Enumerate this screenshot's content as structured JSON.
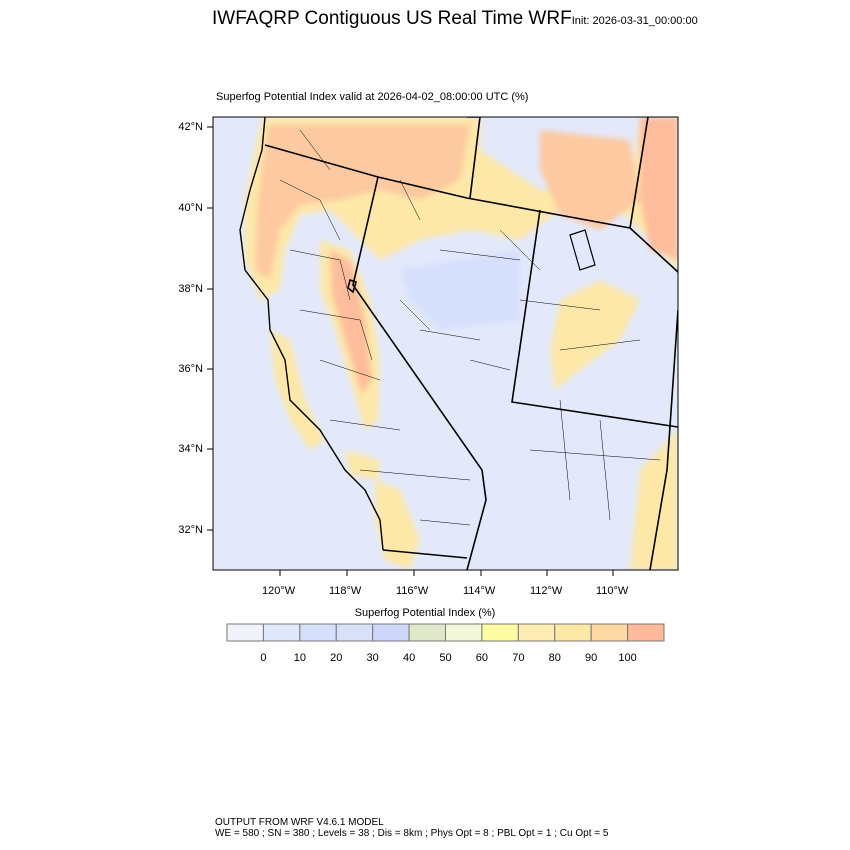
{
  "header": {
    "title": "IWFAQRP Contiguous US Real Time WRF",
    "init": "Init: 2026-03-31_00:00:00"
  },
  "plot": {
    "subtitle": "Superfog Potential Index valid at 2026-04-02_08:00:00 UTC   (%)",
    "lat_ticks": [
      "42°N",
      "40°N",
      "38°N",
      "36°N",
      "34°N",
      "32°N"
    ],
    "lon_ticks": [
      "120°W",
      "118°W",
      "116°W",
      "114°W",
      "112°W",
      "110°W"
    ]
  },
  "colorbar": {
    "title": "Superfog Potential Index  (%)",
    "labels": [
      "0",
      "10",
      "20",
      "30",
      "40",
      "50",
      "60",
      "70",
      "80",
      "90",
      "100"
    ],
    "colors": [
      "#f0f3f9",
      "#e2e8fb",
      "#d6dffb",
      "#d9e1f8",
      "#cdd6fb",
      "#dfe9c9",
      "#f3f8da",
      "#fdfca2",
      "#fdedb2",
      "#fde8a8",
      "#fdd8a2",
      "#feba9a"
    ]
  },
  "footer": {
    "line1": "OUTPUT FROM WRF V4.6.1 MODEL",
    "line2": "WE = 580 ; SN = 380 ; Levels = 38 ; Dis = 8km ; Phys Opt = 8 ; PBL Opt = 1 ; Cu Opt = 5"
  }
}
